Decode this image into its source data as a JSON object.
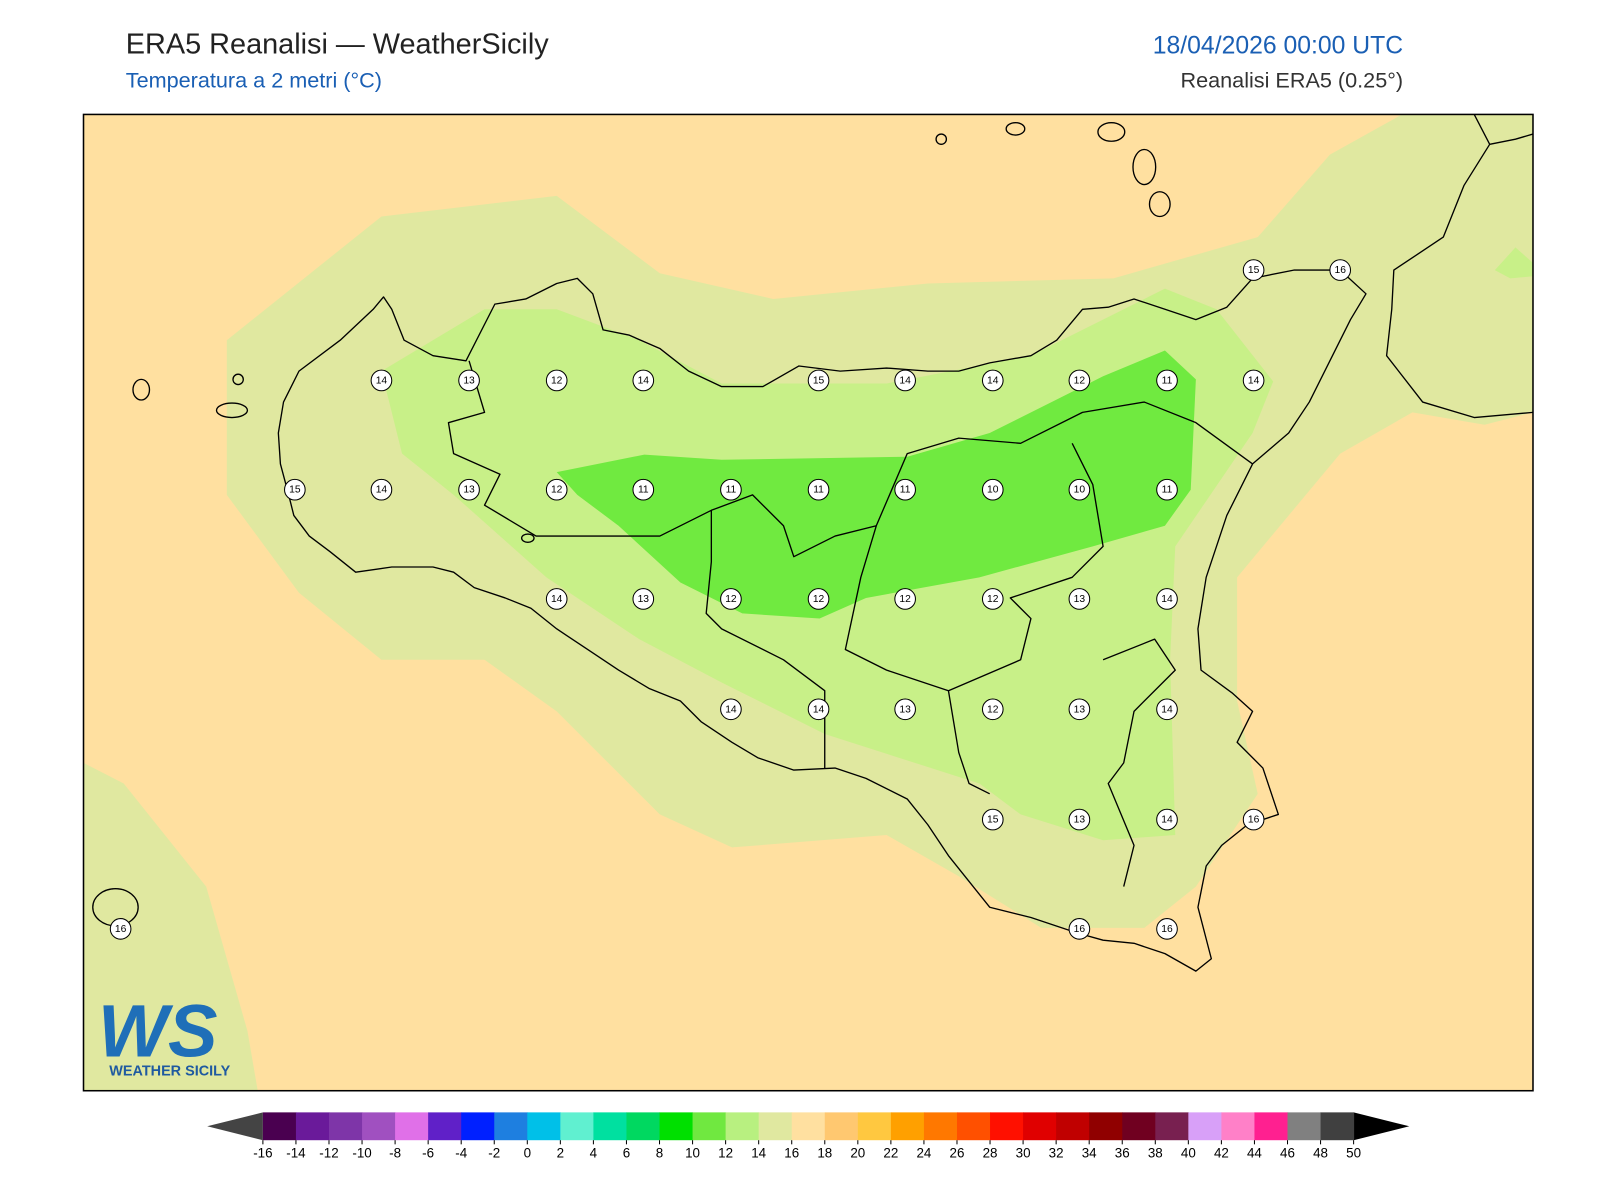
{
  "header": {
    "title": "ERA5 Reanalisi — WeatherSicily",
    "subtitle": "Temperatura a 2 metri (°C)",
    "datetime": "18/04/2026 00:00 UTC",
    "source": "Reanalisi ERA5 (0.25°)"
  },
  "stations": [
    14,
    13,
    12,
    14,
    15,
    14,
    14,
    12,
    11,
    14,
    15,
    16,
    15,
    14,
    13,
    12,
    11,
    11,
    11,
    11,
    10,
    10,
    11,
    14,
    13,
    12,
    12,
    12,
    12,
    13,
    14,
    14,
    14,
    13,
    12,
    13,
    14,
    15,
    13,
    14,
    16,
    16,
    16,
    16
  ],
  "colorbar": {
    "ticks": [
      -16,
      -14,
      -12,
      -10,
      -8,
      -6,
      -4,
      -2,
      0,
      2,
      4,
      6,
      8,
      10,
      12,
      14,
      16,
      18,
      20,
      22,
      24,
      26,
      28,
      30,
      32,
      34,
      36,
      38,
      40,
      42,
      44,
      46,
      48,
      50
    ],
    "colors": [
      "#4a0050",
      "#6a1a9a",
      "#7e35a8",
      "#a050c0",
      "#e070e8",
      "#6020c8",
      "#0020ff",
      "#1e7fe0",
      "#00c0e8",
      "#60f0d0",
      "#00e0a0",
      "#00d860",
      "#00e000",
      "#70e840",
      "#b8f080",
      "#e0e8a0",
      "#ffe0a0",
      "#ffc870",
      "#ffc840",
      "#ffa000",
      "#ff7800",
      "#ff5000",
      "#ff1000",
      "#e00000",
      "#c00000",
      "#900000",
      "#700020",
      "#782050",
      "#d8a0f8",
      "#ff80c8",
      "#ff2090",
      "#808080",
      "#404040"
    ],
    "under_color": "#444444",
    "over_color": "#000000"
  },
  "logo": {
    "mark": "WS",
    "text": "WEATHER SICILY"
  }
}
